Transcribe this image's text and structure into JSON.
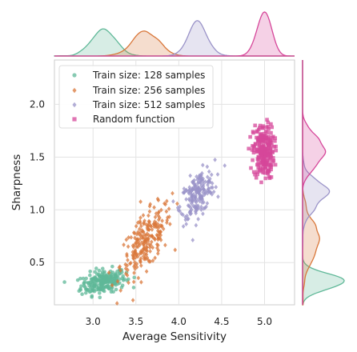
{
  "chart_data": {
    "type": "scatter",
    "xlabel": "Average Sensitivity",
    "ylabel": "Sharpness",
    "xlim": [
      2.55,
      5.35
    ],
    "ylim": [
      0.1,
      2.42
    ],
    "xticks": [
      3.0,
      3.5,
      4.0,
      4.5,
      5.0
    ],
    "xtick_labels": [
      "3.0",
      "3.5",
      "4.0",
      "4.5",
      "5.0"
    ],
    "yticks": [
      0.5,
      1.0,
      1.5,
      2.0
    ],
    "ytick_labels": [
      "0.5",
      "1.0",
      "1.5",
      "2.0"
    ],
    "grid": true,
    "legend_position": "upper-left",
    "marginals": "kde on top (x) and right (y) per series",
    "series": [
      {
        "name": "Train size: 128 samples",
        "marker": "circle",
        "color": "#5fb898",
        "center": [
          3.12,
          0.32
        ],
        "spread": [
          0.13,
          0.055
        ],
        "slope": 0.15,
        "count": 230
      },
      {
        "name": "Train size: 256 samples",
        "marker": "diamond",
        "color": "#d9773a",
        "center": [
          3.62,
          0.7
        ],
        "spread": [
          0.15,
          0.13
        ],
        "slope": 0.75,
        "count": 230
      },
      {
        "name": "Train size: 512 samples",
        "marker": "diamond",
        "color": "#9a93c8",
        "center": [
          4.22,
          1.15
        ],
        "spread": [
          0.1,
          0.1
        ],
        "slope": 0.6,
        "count": 200
      },
      {
        "name": "Random function",
        "marker": "square",
        "color": "#d6479a",
        "center": [
          4.99,
          1.55
        ],
        "spread": [
          0.06,
          0.13
        ],
        "slope": 0.0,
        "count": 230
      }
    ]
  }
}
